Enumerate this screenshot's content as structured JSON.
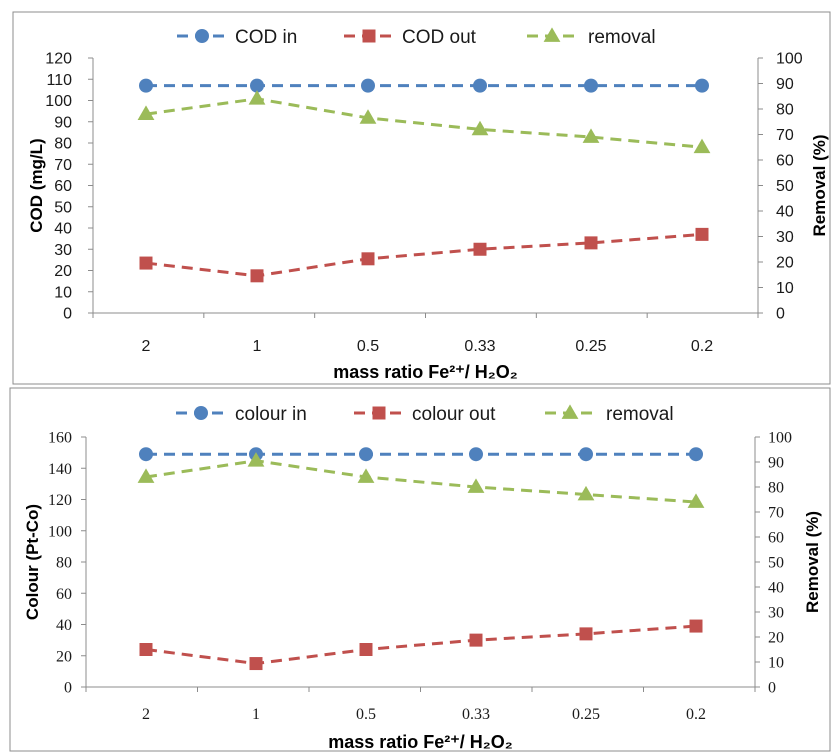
{
  "colors": {
    "in": "#4f81bd",
    "out": "#c0504d",
    "removal": "#9bbb59"
  },
  "icons": {
    "in": "circle-marker",
    "out": "square-marker",
    "removal": "triangle-marker"
  },
  "chart_data": [
    {
      "type": "line",
      "categories": [
        "2",
        "1",
        "0.5",
        "0.33",
        "0.25",
        "0.2"
      ],
      "xlabel": "mass ratio Fe²⁺/ H₂O₂",
      "ylabel": "COD (mg/L)",
      "ylabel_right": "Removal (%)",
      "ylim": [
        0,
        120
      ],
      "yticks": [
        0,
        10,
        20,
        30,
        40,
        50,
        60,
        70,
        80,
        90,
        100,
        110,
        120
      ],
      "y2lim": [
        0,
        100
      ],
      "y2ticks": [
        0,
        10,
        20,
        30,
        40,
        50,
        60,
        70,
        80,
        90,
        100
      ],
      "grid": false,
      "legend": "top",
      "series": [
        {
          "name": "COD in",
          "axis": "left",
          "values": [
            107,
            107,
            107,
            107,
            107,
            107
          ]
        },
        {
          "name": "COD out",
          "axis": "left",
          "values": [
            23.5,
            17.5,
            25.5,
            30,
            33,
            37
          ]
        },
        {
          "name": "removal",
          "axis": "right",
          "values": [
            78,
            84,
            76.5,
            72,
            69,
            65
          ]
        }
      ]
    },
    {
      "type": "line",
      "categories": [
        "2",
        "1",
        "0.5",
        "0.33",
        "0.25",
        "0.2"
      ],
      "xlabel": "mass ratio Fe²⁺/ H₂O₂",
      "ylabel": "Colour (Pt-Co)",
      "ylabel_right": "Removal (%)",
      "ylim": [
        0,
        160
      ],
      "yticks": [
        0,
        20,
        40,
        60,
        80,
        100,
        120,
        140,
        160
      ],
      "y2lim": [
        0,
        100
      ],
      "y2ticks": [
        0,
        10,
        20,
        30,
        40,
        50,
        60,
        70,
        80,
        90,
        100
      ],
      "grid": false,
      "legend": "top",
      "series": [
        {
          "name": "colour in",
          "axis": "left",
          "values": [
            149,
            149,
            149,
            149,
            149,
            149
          ]
        },
        {
          "name": "colour out",
          "axis": "left",
          "values": [
            24,
            15,
            24,
            30,
            34,
            39
          ]
        },
        {
          "name": "removal",
          "axis": "right",
          "values": [
            84,
            90.5,
            84,
            80,
            77,
            74
          ]
        }
      ]
    }
  ]
}
